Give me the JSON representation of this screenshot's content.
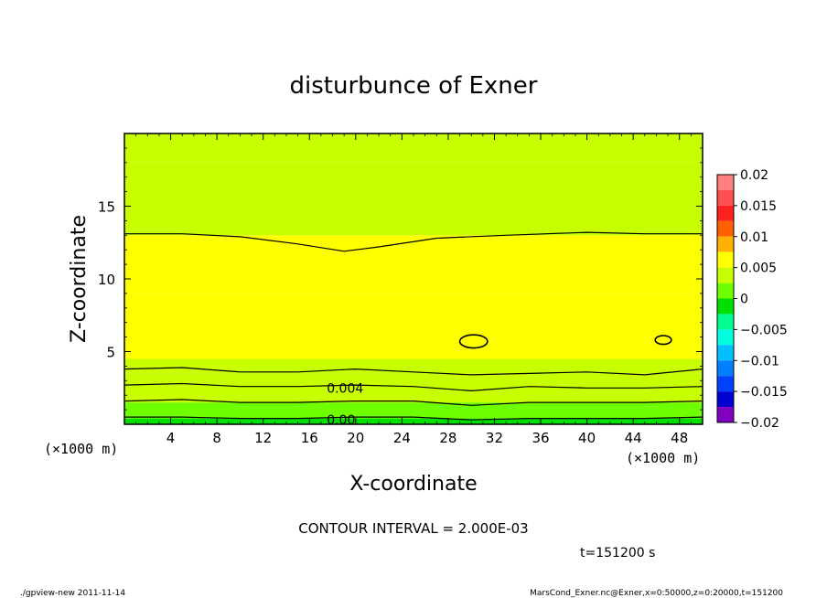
{
  "chart_data": {
    "type": "heatmap",
    "title": "disturbunce of Exner",
    "xlabel": "X-coordinate",
    "ylabel": "Z-coordinate",
    "x_unit_left": "(×1000 m)",
    "x_unit_right": "(×1000 m)",
    "xlim": [
      0,
      50
    ],
    "ylim": [
      0,
      20
    ],
    "x_ticks": [
      4,
      8,
      12,
      16,
      20,
      24,
      28,
      32,
      36,
      40,
      44,
      48
    ],
    "y_ticks": [
      5,
      10,
      15
    ],
    "contour_interval_text": "CONTOUR INTERVAL = 2.000E-03",
    "time_text": "t=151200 s",
    "contour_labels": [
      {
        "text": "0.004",
        "x": 17.5,
        "z": 2.5
      },
      {
        "text": "0.00",
        "x": 17.5,
        "z": 0.3
      }
    ],
    "colorbar": {
      "min": -0.02,
      "max": 0.02,
      "tick_labels": [
        "0.02",
        "0.015",
        "0.01",
        "0.005",
        "0",
        "−0.005",
        "−0.01",
        "−0.015",
        "−0.02"
      ],
      "bands": [
        {
          "from": 0.0175,
          "to": 0.02,
          "color": "#ff8080"
        },
        {
          "from": 0.015,
          "to": 0.0175,
          "color": "#ff5050"
        },
        {
          "from": 0.0125,
          "to": 0.015,
          "color": "#ff2020"
        },
        {
          "from": 0.01,
          "to": 0.0125,
          "color": "#ff6000"
        },
        {
          "from": 0.0075,
          "to": 0.01,
          "color": "#ffb000"
        },
        {
          "from": 0.005,
          "to": 0.0075,
          "color": "#ffff00"
        },
        {
          "from": 0.0025,
          "to": 0.005,
          "color": "#c8ff00"
        },
        {
          "from": 0.0,
          "to": 0.0025,
          "color": "#70ff00"
        },
        {
          "from": -0.0025,
          "to": 0.0,
          "color": "#00e000"
        },
        {
          "from": -0.005,
          "to": -0.0025,
          "color": "#00ff90"
        },
        {
          "from": -0.0075,
          "to": -0.005,
          "color": "#00ffe0"
        },
        {
          "from": -0.01,
          "to": -0.0075,
          "color": "#00c0ff"
        },
        {
          "from": -0.0125,
          "to": -0.01,
          "color": "#0080ff"
        },
        {
          "from": -0.015,
          "to": -0.0125,
          "color": "#0040ff"
        },
        {
          "from": -0.0175,
          "to": -0.015,
          "color": "#0000d0"
        },
        {
          "from": -0.02,
          "to": -0.0175,
          "color": "#8000c0"
        }
      ]
    },
    "field_layers": [
      {
        "z_from": 0.0,
        "z_to": 0.4,
        "value": -0.001
      },
      {
        "z_from": 0.4,
        "z_to": 1.5,
        "value": 0.0012
      },
      {
        "z_from": 1.5,
        "z_to": 3.5,
        "value": 0.003
      },
      {
        "z_from": 3.5,
        "z_to": 4.5,
        "value": 0.0045
      },
      {
        "z_from": 4.5,
        "z_to": 9.0,
        "value": 0.0058
      },
      {
        "z_from": 9.0,
        "z_to": 13.0,
        "value": 0.0053
      },
      {
        "z_from": 13.0,
        "z_to": 18.0,
        "value": 0.0046
      },
      {
        "z_from": 18.0,
        "z_to": 20.0,
        "value": 0.0042
      }
    ],
    "contour_lines": [
      {
        "level": 0.006,
        "points": [
          [
            0,
            13.1
          ],
          [
            5,
            13.1
          ],
          [
            10,
            12.9
          ],
          [
            15,
            12.4
          ],
          [
            19,
            11.9
          ],
          [
            22,
            12.2
          ],
          [
            27,
            12.8
          ],
          [
            33,
            13.0
          ],
          [
            40,
            13.2
          ],
          [
            45,
            13.1
          ],
          [
            50,
            13.1
          ]
        ]
      },
      {
        "level": 0.004,
        "points": [
          [
            0,
            3.8
          ],
          [
            5,
            3.9
          ],
          [
            10,
            3.6
          ],
          [
            15,
            3.6
          ],
          [
            20,
            3.8
          ],
          [
            25,
            3.6
          ],
          [
            30,
            3.4
          ],
          [
            35,
            3.5
          ],
          [
            40,
            3.6
          ],
          [
            45,
            3.4
          ],
          [
            50,
            3.8
          ]
        ]
      },
      {
        "level": 0.004,
        "points": [
          [
            0,
            2.7
          ],
          [
            5,
            2.8
          ],
          [
            10,
            2.6
          ],
          [
            15,
            2.6
          ],
          [
            20,
            2.7
          ],
          [
            25,
            2.6
          ],
          [
            30,
            2.3
          ],
          [
            35,
            2.6
          ],
          [
            40,
            2.5
          ],
          [
            45,
            2.5
          ],
          [
            50,
            2.6
          ]
        ]
      },
      {
        "level": 0.002,
        "points": [
          [
            0,
            1.6
          ],
          [
            5,
            1.7
          ],
          [
            10,
            1.5
          ],
          [
            15,
            1.5
          ],
          [
            20,
            1.6
          ],
          [
            25,
            1.6
          ],
          [
            30,
            1.3
          ],
          [
            35,
            1.5
          ],
          [
            40,
            1.5
          ],
          [
            45,
            1.5
          ],
          [
            50,
            1.6
          ]
        ]
      },
      {
        "level": 0.0,
        "points": [
          [
            0,
            0.5
          ],
          [
            5,
            0.5
          ],
          [
            10,
            0.4
          ],
          [
            15,
            0.4
          ],
          [
            20,
            0.5
          ],
          [
            25,
            0.5
          ],
          [
            30,
            0.3
          ],
          [
            35,
            0.4
          ],
          [
            40,
            0.4
          ],
          [
            45,
            0.4
          ],
          [
            50,
            0.5
          ]
        ]
      }
    ],
    "contour_loops": [
      {
        "x": 30.2,
        "z": 5.7,
        "rx": 1.2,
        "rz": 0.45
      },
      {
        "x": 46.6,
        "z": 5.8,
        "rx": 0.7,
        "rz": 0.3
      }
    ]
  },
  "footer": {
    "left": "./gpview-new  2011-11-14",
    "right": "MarsCond_Exner.nc@Exner,x=0:50000,z=0:20000,t=151200"
  }
}
